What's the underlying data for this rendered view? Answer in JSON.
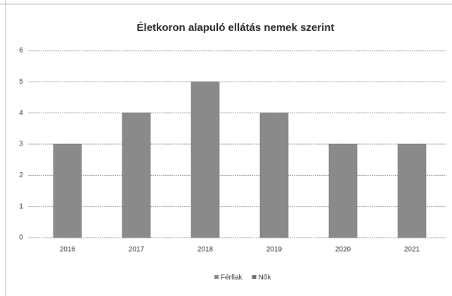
{
  "chart_data": {
    "type": "bar",
    "title": "Életkoron alapuló ellátás nemek szerint",
    "categories": [
      "2016",
      "2017",
      "2018",
      "2019",
      "2020",
      "2021"
    ],
    "series": [
      {
        "name": "Férfiak",
        "color": "#8a8a8a",
        "values": [
          3,
          4,
          5,
          4,
          3,
          3
        ]
      },
      {
        "name": "Nők",
        "color": "#6f6f6f",
        "values": [
          null,
          null,
          null,
          null,
          null,
          null
        ]
      }
    ],
    "ylim": [
      0,
      6
    ],
    "yticks": [
      0,
      1,
      2,
      3,
      4,
      5,
      6
    ],
    "grid": true,
    "legend": "bottom"
  }
}
